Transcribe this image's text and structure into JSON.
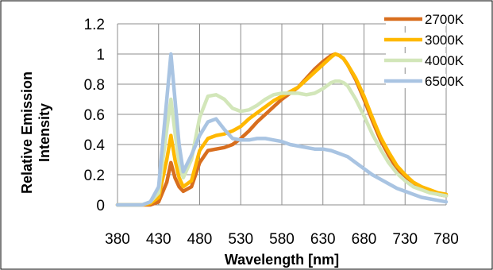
{
  "chart_data": {
    "type": "line",
    "xlabel": "Wavelength  [nm]",
    "ylabel_lines": [
      "Relative Emission",
      "Intensity"
    ],
    "xlim": [
      380,
      780
    ],
    "ylim": [
      0,
      1.2
    ],
    "x_ticks": [
      "380",
      "430",
      "480",
      "530",
      "580",
      "630",
      "680",
      "730",
      "780"
    ],
    "y_ticks": [
      "0",
      "0.2",
      "0.4",
      "0.6",
      "0.8",
      "1",
      "1.2"
    ],
    "grid": true,
    "legend_position": "top-right",
    "x": [
      380,
      390,
      400,
      410,
      420,
      430,
      440,
      445,
      450,
      455,
      460,
      470,
      480,
      490,
      500,
      510,
      520,
      530,
      540,
      550,
      560,
      570,
      580,
      590,
      600,
      610,
      620,
      630,
      640,
      645,
      650,
      655,
      660,
      670,
      680,
      690,
      700,
      710,
      720,
      730,
      740,
      750,
      760,
      770,
      780
    ],
    "series": [
      {
        "name": "2700K",
        "color": "#d86e1e",
        "values": [
          0.0,
          0.0,
          0.0,
          0.0,
          0.0,
          0.02,
          0.15,
          0.28,
          0.18,
          0.12,
          0.09,
          0.12,
          0.28,
          0.36,
          0.37,
          0.38,
          0.4,
          0.44,
          0.49,
          0.55,
          0.6,
          0.65,
          0.7,
          0.74,
          0.78,
          0.84,
          0.9,
          0.95,
          0.99,
          1.0,
          0.99,
          0.97,
          0.93,
          0.83,
          0.7,
          0.56,
          0.43,
          0.33,
          0.24,
          0.18,
          0.14,
          0.11,
          0.09,
          0.07,
          0.06
        ]
      },
      {
        "name": "3000K",
        "color": "#ffb800",
        "values": [
          0.0,
          0.0,
          0.0,
          0.0,
          0.01,
          0.05,
          0.3,
          0.46,
          0.3,
          0.18,
          0.12,
          0.16,
          0.36,
          0.44,
          0.46,
          0.47,
          0.49,
          0.52,
          0.57,
          0.61,
          0.65,
          0.69,
          0.72,
          0.75,
          0.78,
          0.83,
          0.88,
          0.93,
          0.98,
          1.0,
          0.99,
          0.97,
          0.93,
          0.84,
          0.72,
          0.58,
          0.45,
          0.35,
          0.26,
          0.2,
          0.15,
          0.12,
          0.1,
          0.08,
          0.07
        ]
      },
      {
        "name": "4000K",
        "color": "#d2e6b9",
        "values": [
          0.0,
          0.0,
          0.0,
          0.0,
          0.02,
          0.08,
          0.5,
          0.7,
          0.48,
          0.28,
          0.18,
          0.3,
          0.58,
          0.72,
          0.73,
          0.7,
          0.64,
          0.62,
          0.63,
          0.66,
          0.7,
          0.73,
          0.74,
          0.74,
          0.74,
          0.73,
          0.74,
          0.77,
          0.81,
          0.82,
          0.82,
          0.81,
          0.79,
          0.7,
          0.59,
          0.47,
          0.37,
          0.28,
          0.21,
          0.16,
          0.12,
          0.1,
          0.08,
          0.07,
          0.06
        ]
      },
      {
        "name": "6500K",
        "color": "#a9c4e2",
        "values": [
          0.0,
          0.0,
          0.0,
          0.0,
          0.02,
          0.12,
          0.7,
          1.0,
          0.7,
          0.4,
          0.22,
          0.33,
          0.46,
          0.55,
          0.57,
          0.5,
          0.44,
          0.43,
          0.43,
          0.44,
          0.44,
          0.43,
          0.42,
          0.4,
          0.39,
          0.38,
          0.37,
          0.37,
          0.36,
          0.35,
          0.34,
          0.33,
          0.32,
          0.28,
          0.24,
          0.2,
          0.17,
          0.14,
          0.11,
          0.09,
          0.07,
          0.05,
          0.04,
          0.03,
          0.02
        ]
      }
    ]
  }
}
